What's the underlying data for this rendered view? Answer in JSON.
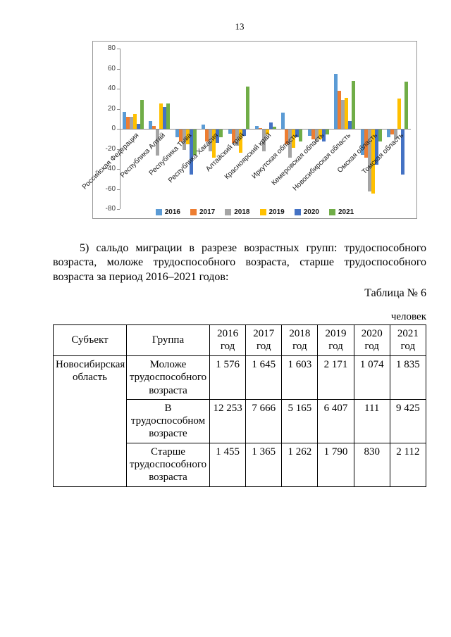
{
  "page": {
    "number": "13"
  },
  "paragraph": {
    "text": "5) сальдо миграции в разрезе возрастных групп: трудоспособного возраста, моложе трудоспособного возраста, старше трудоспособного возраста за период 2016–2021 годов:"
  },
  "table_caption": "Таблица № 6",
  "table_unit": "человек",
  "chart_data": {
    "type": "bar",
    "title": "",
    "xlabel": "",
    "ylabel": "",
    "ylim": [
      -80,
      80
    ],
    "yticks": [
      80,
      60,
      40,
      20,
      0,
      -20,
      -40,
      -60,
      -80
    ],
    "grid": false,
    "legend_position": "bottom",
    "categories": [
      "Российская Федерация",
      "Республика Алтай",
      "Республика Тыва",
      "Республика Хакасия",
      "Алтайский край",
      "Красноярский край",
      "Иркутская область",
      "Кемеровская область",
      "Новосибирская область",
      "Омская область",
      "Томская область"
    ],
    "series": [
      {
        "name": "2016",
        "color": "#5B9BD5",
        "values": [
          17,
          8,
          -8,
          4,
          -4,
          3,
          16,
          -6,
          55,
          -25,
          -8
        ]
      },
      {
        "name": "2017",
        "color": "#ED7D31",
        "values": [
          12,
          3,
          -12,
          -12,
          -13,
          1,
          -15,
          -10,
          38,
          -28,
          -5
        ]
      },
      {
        "name": "2018",
        "color": "#A5A5A5",
        "values": [
          12,
          -26,
          -20,
          -22,
          -16,
          -22,
          -28,
          -12,
          29,
          -62,
          -10
        ]
      },
      {
        "name": "2019",
        "color": "#FFC000",
        "values": [
          15,
          25,
          -15,
          -28,
          -23,
          -5,
          -18,
          -10,
          31,
          -64,
          30
        ]
      },
      {
        "name": "2020",
        "color": "#4472C4",
        "values": [
          5,
          22,
          -45,
          -13,
          -6,
          6,
          -8,
          -12,
          8,
          -35,
          -45
        ]
      },
      {
        "name": "2021",
        "color": "#70AD47",
        "values": [
          29,
          25,
          -25,
          -8,
          42,
          2,
          -12,
          -5,
          48,
          -12,
          47
        ]
      }
    ]
  },
  "table": {
    "col_headers": [
      "Субъект",
      "Группа",
      "2016 год",
      "2017 год",
      "2018 год",
      "2019 год",
      "2020 год",
      "2021 год"
    ],
    "subject": "Новосибирская область",
    "rows": [
      {
        "group": "Моложе трудоспособного возраста",
        "values": [
          "1 576",
          "1 645",
          "1 603",
          "2 171",
          "1 074",
          "1 835"
        ]
      },
      {
        "group": "В трудоспособном возрасте",
        "values": [
          "12 253",
          "7 666",
          "5 165",
          "6 407",
          "111",
          "9 425"
        ]
      },
      {
        "group": "Старше трудоспособного возраста",
        "values": [
          "1 455",
          "1 365",
          "1 262",
          "1 790",
          "830",
          "2 112"
        ]
      }
    ]
  }
}
